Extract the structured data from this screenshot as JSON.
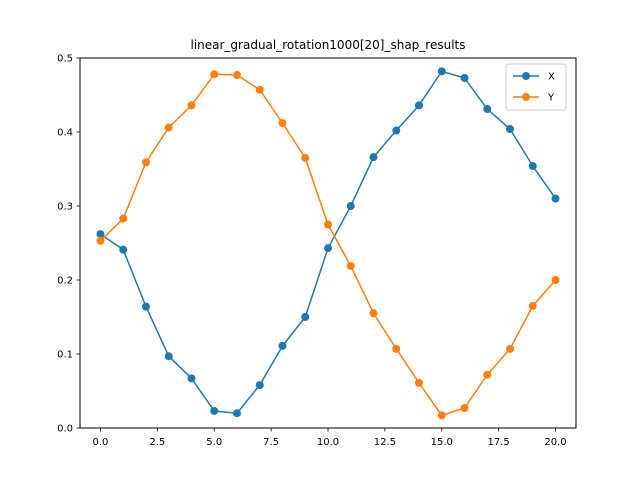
{
  "chart_data": {
    "type": "line",
    "title": "linear_gradual_rotation1000[20]_shap_results",
    "xlabel": "",
    "ylabel": "",
    "xlim": [
      -0.9,
      20.9
    ],
    "ylim": [
      0.0,
      0.5
    ],
    "xticks": [
      0.0,
      2.5,
      5.0,
      7.5,
      10.0,
      12.5,
      15.0,
      17.5,
      20.0
    ],
    "xtick_labels": [
      "0.0",
      "2.5",
      "5.0",
      "7.5",
      "10.0",
      "12.5",
      "15.0",
      "17.5",
      "20.0"
    ],
    "yticks": [
      0.0,
      0.1,
      0.2,
      0.3,
      0.4,
      0.5
    ],
    "ytick_labels": [
      "0.0",
      "0.1",
      "0.2",
      "0.3",
      "0.4",
      "0.5"
    ],
    "grid": false,
    "legend_position": "top-right",
    "x": [
      0,
      1,
      2,
      3,
      4,
      5,
      6,
      7,
      8,
      9,
      10,
      11,
      12,
      13,
      14,
      15,
      16,
      17,
      18,
      19,
      20
    ],
    "series": [
      {
        "name": "X",
        "color": "#1f77b4",
        "marker": "circle",
        "values": [
          0.262,
          0.241,
          0.164,
          0.097,
          0.067,
          0.023,
          0.02,
          0.058,
          0.111,
          0.15,
          0.243,
          0.3,
          0.366,
          0.402,
          0.436,
          0.482,
          0.473,
          0.431,
          0.404,
          0.354,
          0.31
        ]
      },
      {
        "name": "Y",
        "color": "#ff7f0e",
        "marker": "circle",
        "values": [
          0.253,
          0.283,
          0.359,
          0.406,
          0.436,
          0.478,
          0.477,
          0.457,
          0.412,
          0.365,
          0.275,
          0.219,
          0.155,
          0.107,
          0.061,
          0.017,
          0.027,
          0.072,
          0.107,
          0.165,
          0.2
        ]
      }
    ]
  }
}
